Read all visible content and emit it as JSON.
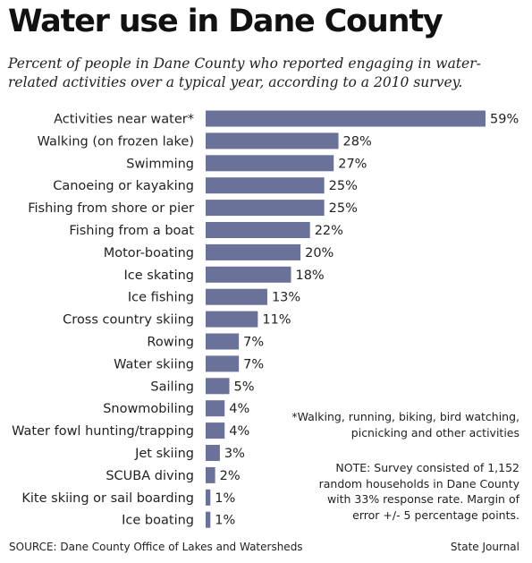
{
  "header": {
    "title": "Water use in Dane County",
    "subtitle": "Percent of people in Dane County who reported engaging in water-related activities over a typical year, according to a 2010 survey."
  },
  "chart_data": {
    "type": "bar",
    "orientation": "horizontal",
    "bar_color": "#6b729a",
    "value_suffix": "%",
    "categories": [
      "Activities near water*",
      "Walking (on frozen lake)",
      "Swimming",
      "Canoeing or kayaking",
      "Fishing from shore or pier",
      "Fishing from a boat",
      "Motor-boating",
      "Ice skating",
      "Ice fishing",
      "Cross country skiing",
      "Rowing",
      "Water skiing",
      "Sailing",
      "Snowmobiling",
      "Water fowl hunting/trapping",
      "Jet skiing",
      "SCUBA diving",
      "Kite skiing or sail boarding",
      "Ice boating"
    ],
    "values": [
      59,
      28,
      27,
      25,
      25,
      22,
      20,
      18,
      13,
      11,
      7,
      7,
      5,
      4,
      4,
      3,
      2,
      1,
      1
    ],
    "xlim": [
      0,
      59
    ],
    "grid": false,
    "legend": "none"
  },
  "notes": {
    "footnote": "*Walking, running, biking, bird watching, picnicking and other activities",
    "survey_note": "NOTE: Survey consisted of 1,152 random households in Dane County with 33% response rate. Margin of error +/- 5 percentage points."
  },
  "footer": {
    "source": "SOURCE: Dane County Office of Lakes and Watersheds",
    "credit": "State Journal"
  }
}
